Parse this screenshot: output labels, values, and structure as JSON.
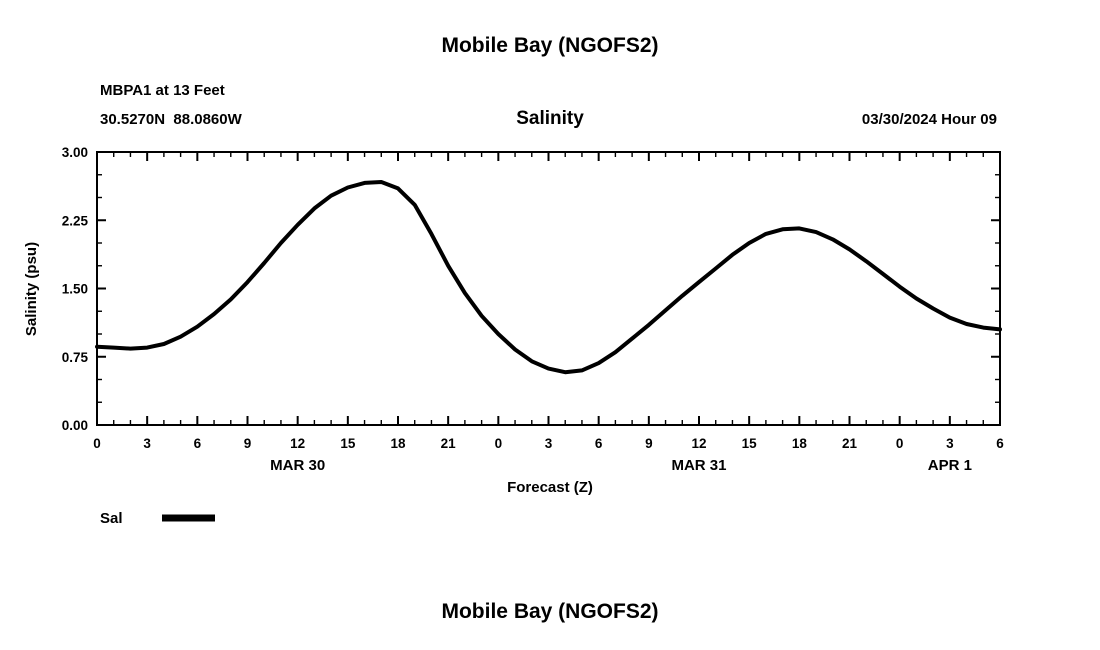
{
  "header": {
    "title": "Mobile Bay (NGOFS2)",
    "station": "MBPA1 at 13 Feet",
    "coords": "30.5270N  88.0860W",
    "datetime": "03/30/2024 Hour 09"
  },
  "chart_data": {
    "type": "line",
    "title": "Salinity",
    "xlabel": "Forecast (Z)",
    "ylabel": "Salinity (psu)",
    "ylim": [
      0.0,
      3.0
    ],
    "yticks": [
      0.0,
      0.75,
      1.5,
      2.25,
      3.0
    ],
    "xlim": [
      0,
      54
    ],
    "xtick_interval": 3,
    "xtick_labels": [
      "0",
      "3",
      "6",
      "9",
      "12",
      "15",
      "18",
      "21",
      "0",
      "3",
      "6",
      "9",
      "12",
      "15",
      "18",
      "21",
      "0",
      "3",
      "6"
    ],
    "day_labels": [
      {
        "label": "MAR 30",
        "hour": 12
      },
      {
        "label": "MAR 31",
        "hour": 36
      },
      {
        "label": "APR 1",
        "hour": 51
      }
    ],
    "grid": false,
    "legend_position": "bottom-left",
    "legend": [
      {
        "name": "Sal",
        "color": "#000000"
      }
    ],
    "series": [
      {
        "name": "Sal",
        "x": [
          0,
          1,
          2,
          3,
          4,
          5,
          6,
          7,
          8,
          9,
          10,
          11,
          12,
          13,
          14,
          15,
          16,
          17,
          18,
          19,
          20,
          21,
          22,
          23,
          24,
          25,
          26,
          27,
          28,
          29,
          30,
          31,
          32,
          33,
          34,
          35,
          36,
          37,
          38,
          39,
          40,
          41,
          42,
          43,
          44,
          45,
          46,
          47,
          48,
          49,
          50,
          51,
          52,
          53,
          54
        ],
        "y": [
          0.86,
          0.85,
          0.84,
          0.85,
          0.89,
          0.97,
          1.08,
          1.22,
          1.38,
          1.57,
          1.78,
          2.0,
          2.2,
          2.38,
          2.52,
          2.61,
          2.66,
          2.67,
          2.6,
          2.42,
          2.1,
          1.75,
          1.45,
          1.2,
          1.0,
          0.83,
          0.7,
          0.62,
          0.58,
          0.6,
          0.68,
          0.8,
          0.95,
          1.1,
          1.26,
          1.42,
          1.57,
          1.72,
          1.87,
          2.0,
          2.1,
          2.15,
          2.16,
          2.12,
          2.04,
          1.93,
          1.8,
          1.66,
          1.52,
          1.39,
          1.28,
          1.18,
          1.11,
          1.07,
          1.05
        ]
      }
    ]
  },
  "footer": {
    "next_title": "Mobile Bay (NGOFS2)"
  }
}
